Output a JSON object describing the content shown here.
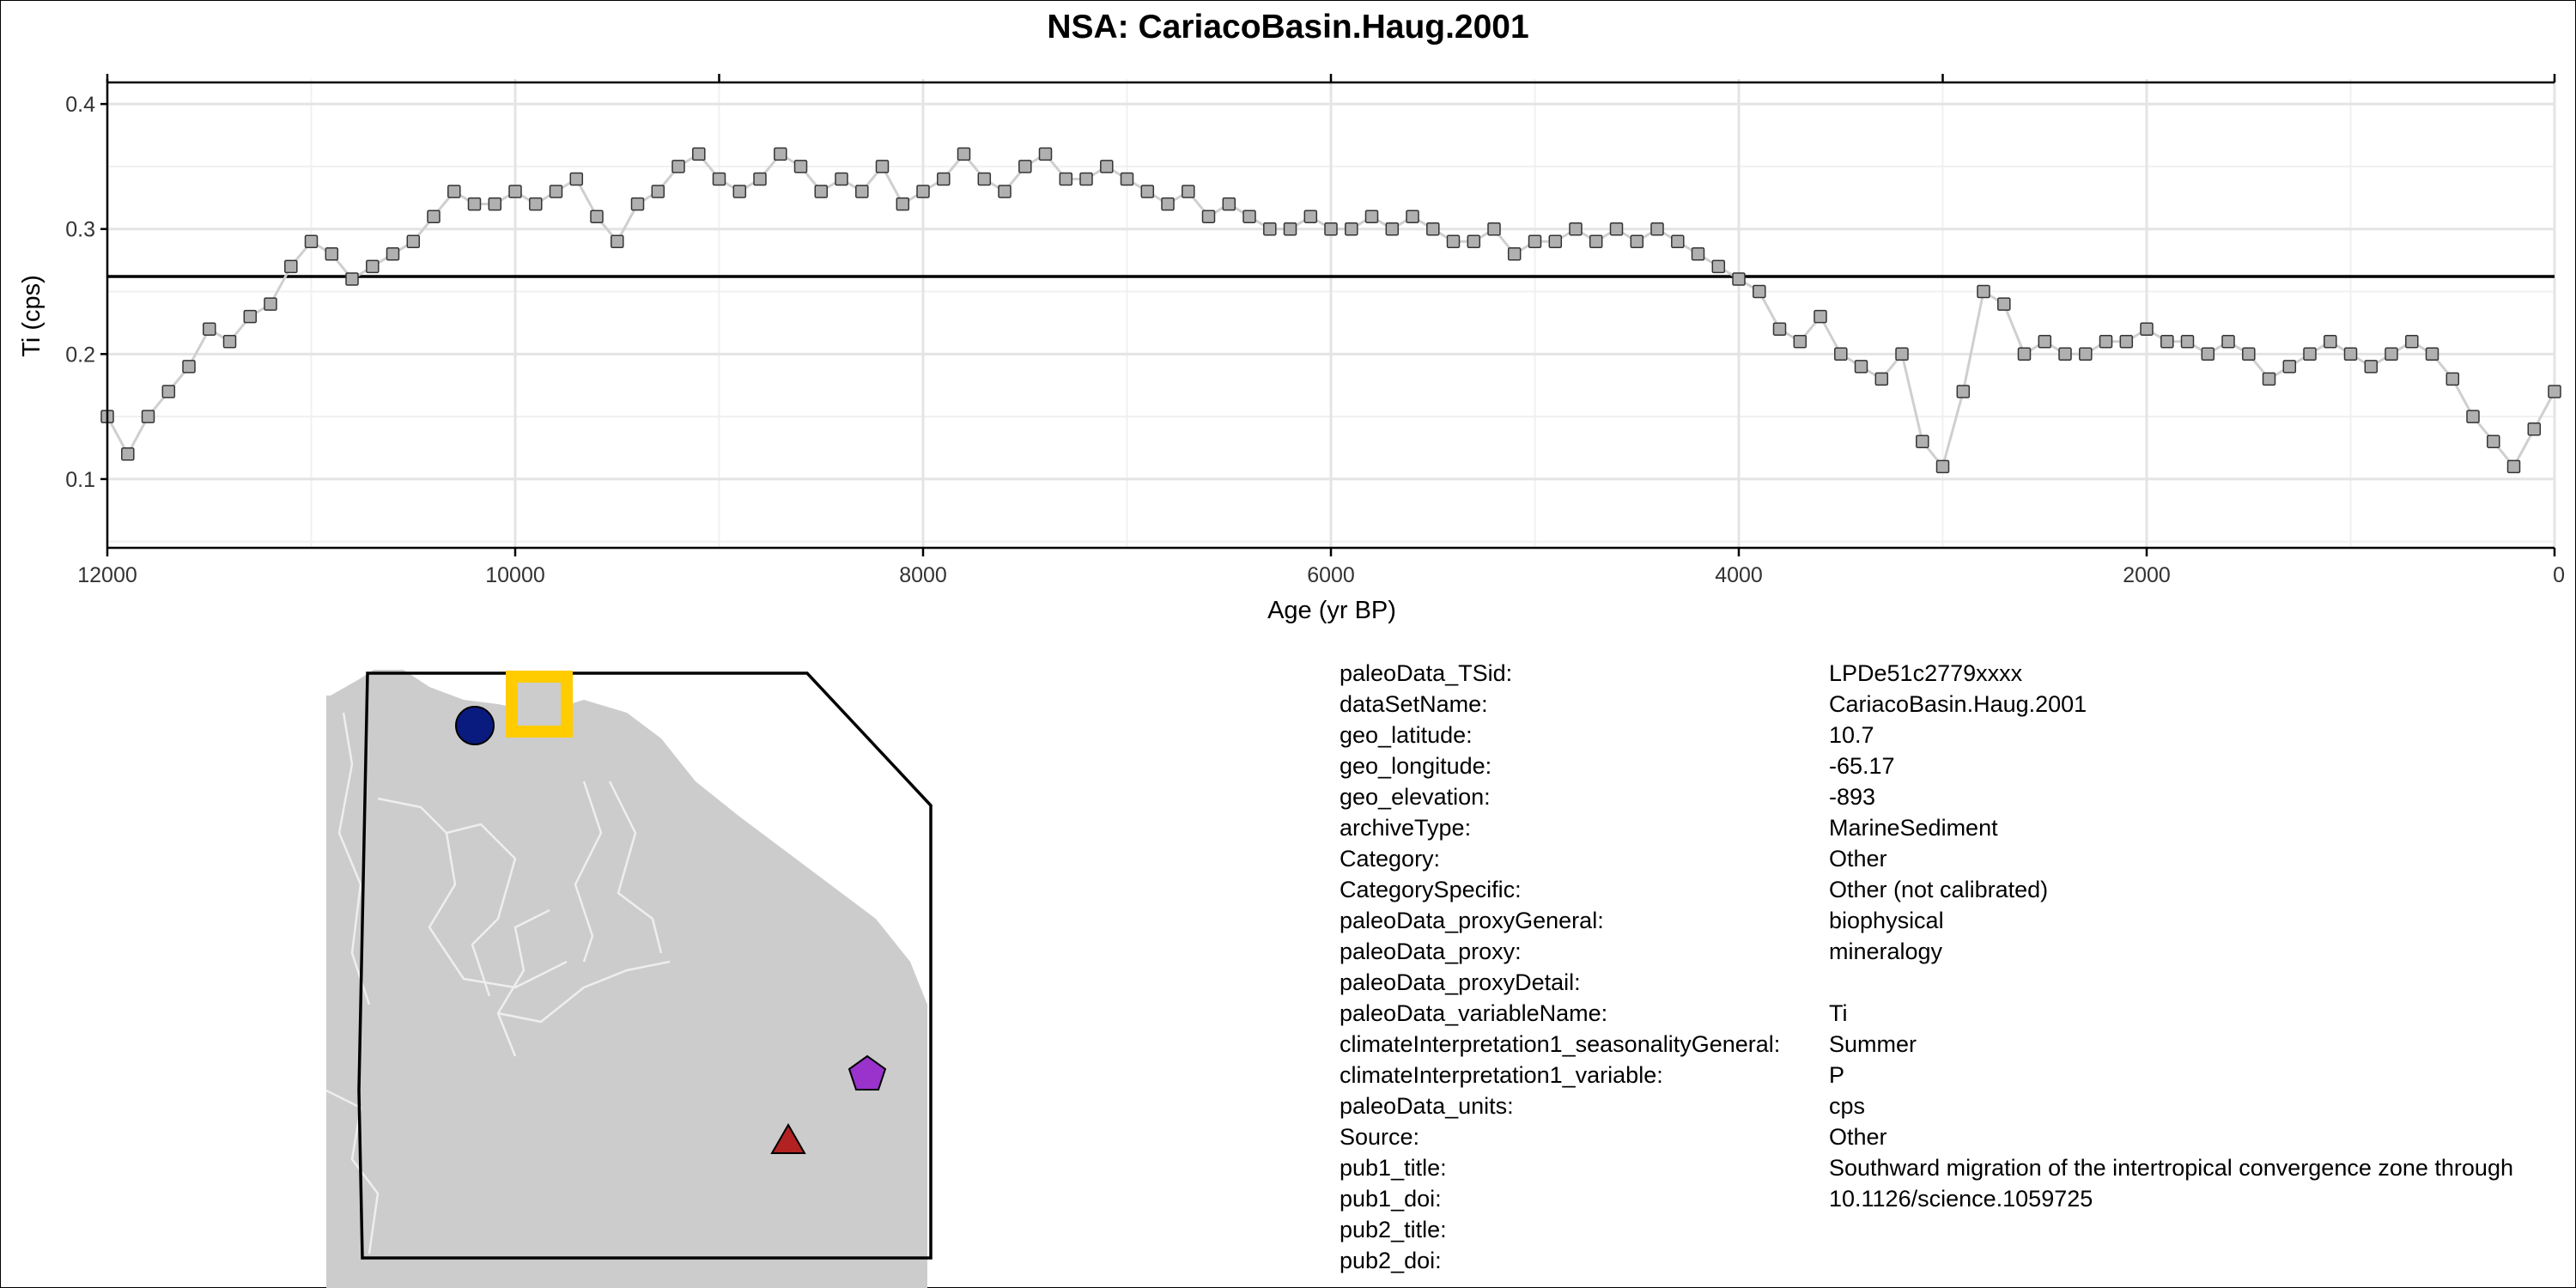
{
  "chart_data": {
    "type": "line",
    "title": "NSA: CariacoBasin.Haug.2001",
    "xlabel": "Age (yr BP)",
    "ylabel": "Ti (cps)",
    "xlim": [
      12000,
      0
    ],
    "ylim": [
      0.045,
      0.42
    ],
    "x_ticks": [
      12000,
      10000,
      8000,
      6000,
      4000,
      2000,
      0
    ],
    "y_ticks": [
      0.1,
      0.2,
      0.3,
      0.4
    ],
    "x_tick_labels": [
      "12000",
      "10000",
      "8000",
      "6000",
      "4000",
      "2000",
      "0"
    ],
    "y_tick_labels": [
      "0.1",
      "0.2",
      "0.3",
      "0.4"
    ],
    "reference_line": {
      "y": 0.262
    },
    "grid": true,
    "marker": "square",
    "series": [
      {
        "x": [
          12000,
          11900,
          11800,
          11700,
          11600,
          11500,
          11400,
          11300,
          11200,
          11100,
          11000,
          10900,
          10800,
          10700,
          10600,
          10500,
          10400,
          10300,
          10200,
          10100,
          10000,
          9900,
          9800,
          9700,
          9600,
          9500,
          9400,
          9300,
          9200,
          9100,
          9000,
          8900,
          8800,
          8700,
          8600,
          8500,
          8400,
          8300,
          8200,
          8100,
          8000,
          7900,
          7800,
          7700,
          7600,
          7500,
          7400,
          7300,
          7200,
          7100,
          7000,
          6900,
          6800,
          6700,
          6600,
          6500,
          6400,
          6300,
          6200,
          6100,
          6000,
          5900,
          5800,
          5700,
          5600,
          5500,
          5400,
          5300,
          5200,
          5100,
          5000,
          4900,
          4800,
          4700,
          4600,
          4500,
          4400,
          4300,
          4200,
          4100,
          4000,
          3900,
          3800,
          3700,
          3600,
          3500,
          3400,
          3300,
          3200,
          3100,
          3000,
          2900,
          2800,
          2700,
          2600,
          2500,
          2400,
          2300,
          2200,
          2100,
          2000,
          1900,
          1800,
          1700,
          1600,
          1500,
          1400,
          1300,
          1200,
          1100,
          1000,
          900,
          800,
          700,
          600,
          500,
          400,
          300,
          200,
          100,
          0
        ],
        "y": [
          0.15,
          0.12,
          0.15,
          0.17,
          0.19,
          0.22,
          0.21,
          0.23,
          0.24,
          0.27,
          0.29,
          0.28,
          0.26,
          0.27,
          0.28,
          0.29,
          0.31,
          0.33,
          0.32,
          0.32,
          0.33,
          0.32,
          0.33,
          0.34,
          0.31,
          0.29,
          0.32,
          0.33,
          0.35,
          0.36,
          0.34,
          0.33,
          0.34,
          0.36,
          0.35,
          0.33,
          0.34,
          0.33,
          0.35,
          0.32,
          0.33,
          0.34,
          0.36,
          0.34,
          0.33,
          0.35,
          0.36,
          0.34,
          0.34,
          0.35,
          0.34,
          0.33,
          0.32,
          0.33,
          0.31,
          0.32,
          0.31,
          0.3,
          0.3,
          0.31,
          0.3,
          0.3,
          0.31,
          0.3,
          0.31,
          0.3,
          0.29,
          0.29,
          0.3,
          0.28,
          0.29,
          0.29,
          0.3,
          0.29,
          0.3,
          0.29,
          0.3,
          0.29,
          0.28,
          0.27,
          0.26,
          0.25,
          0.22,
          0.21,
          0.23,
          0.2,
          0.19,
          0.18,
          0.2,
          0.13,
          0.11,
          0.17,
          0.25,
          0.24,
          0.2,
          0.21,
          0.2,
          0.2,
          0.21,
          0.21,
          0.22,
          0.21,
          0.21,
          0.2,
          0.21,
          0.2,
          0.18,
          0.19,
          0.2,
          0.21,
          0.2,
          0.19,
          0.2,
          0.21,
          0.2,
          0.18,
          0.15,
          0.13,
          0.11,
          0.14,
          0.17
        ]
      }
    ]
  },
  "map": {
    "markers": [
      {
        "shape": "circle",
        "color": "#0a1b80"
      },
      {
        "shape": "square",
        "color": "#ffcc00"
      },
      {
        "shape": "pentagon",
        "color": "#9933cc"
      },
      {
        "shape": "triangle",
        "color": "#b22222"
      }
    ],
    "land_color": "#cccccc",
    "border_color": "#eeeeee"
  },
  "metadata": [
    {
      "key": "paleoData_TSid:",
      "value": "LPDe51c2779xxxx"
    },
    {
      "key": "dataSetName:",
      "value": "CariacoBasin.Haug.2001"
    },
    {
      "key": "geo_latitude:",
      "value": "10.7"
    },
    {
      "key": "geo_longitude:",
      "value": "-65.17"
    },
    {
      "key": "geo_elevation:",
      "value": "-893"
    },
    {
      "key": "archiveType:",
      "value": "MarineSediment"
    },
    {
      "key": "Category:",
      "value": "Other"
    },
    {
      "key": "CategorySpecific:",
      "value": "Other (not calibrated)"
    },
    {
      "key": "paleoData_proxyGeneral:",
      "value": "biophysical"
    },
    {
      "key": "paleoData_proxy:",
      "value": "mineralogy"
    },
    {
      "key": "paleoData_proxyDetail:",
      "value": ""
    },
    {
      "key": "paleoData_variableName:",
      "value": "Ti"
    },
    {
      "key": "climateInterpretation1_seasonalityGeneral:",
      "value": "Summer"
    },
    {
      "key": "climateInterpretation1_variable:",
      "value": "P"
    },
    {
      "key": "paleoData_units:",
      "value": "cps"
    },
    {
      "key": "Source:",
      "value": "Other"
    },
    {
      "key": "pub1_title:",
      "value": "Southward migration of the intertropical convergence zone through"
    },
    {
      "key": "pub1_doi:",
      "value": "10.1126/science.1059725"
    },
    {
      "key": "pub2_title:",
      "value": ""
    },
    {
      "key": "pub2_doi:",
      "value": ""
    }
  ]
}
